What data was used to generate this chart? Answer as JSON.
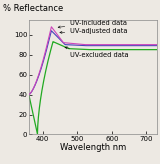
{
  "title": "% Reflectance",
  "xlabel": "Wavelength nm",
  "xlim": [
    360,
    730
  ],
  "ylim": [
    0,
    115
  ],
  "yticks": [
    0,
    20,
    40,
    60,
    80,
    100
  ],
  "xticks": [
    400,
    500,
    600,
    700
  ],
  "background_color": "#ede9e3",
  "plot_bg_color": "#ede9e3",
  "series": {
    "uv_included": {
      "label": "UV-included data",
      "color": "#cc44bb",
      "linewidth": 0.8
    },
    "uv_adjusted": {
      "label": "UV-adjusted data",
      "color": "#4444bb",
      "linewidth": 0.8
    },
    "uv_excluded": {
      "label": "UV-excluded data",
      "color": "#22aa22",
      "linewidth": 0.9
    }
  },
  "annotation_fontsize": 4.8,
  "axis_fontsize": 6.0,
  "tick_fontsize": 5.0,
  "title_fontsize": 6.0
}
